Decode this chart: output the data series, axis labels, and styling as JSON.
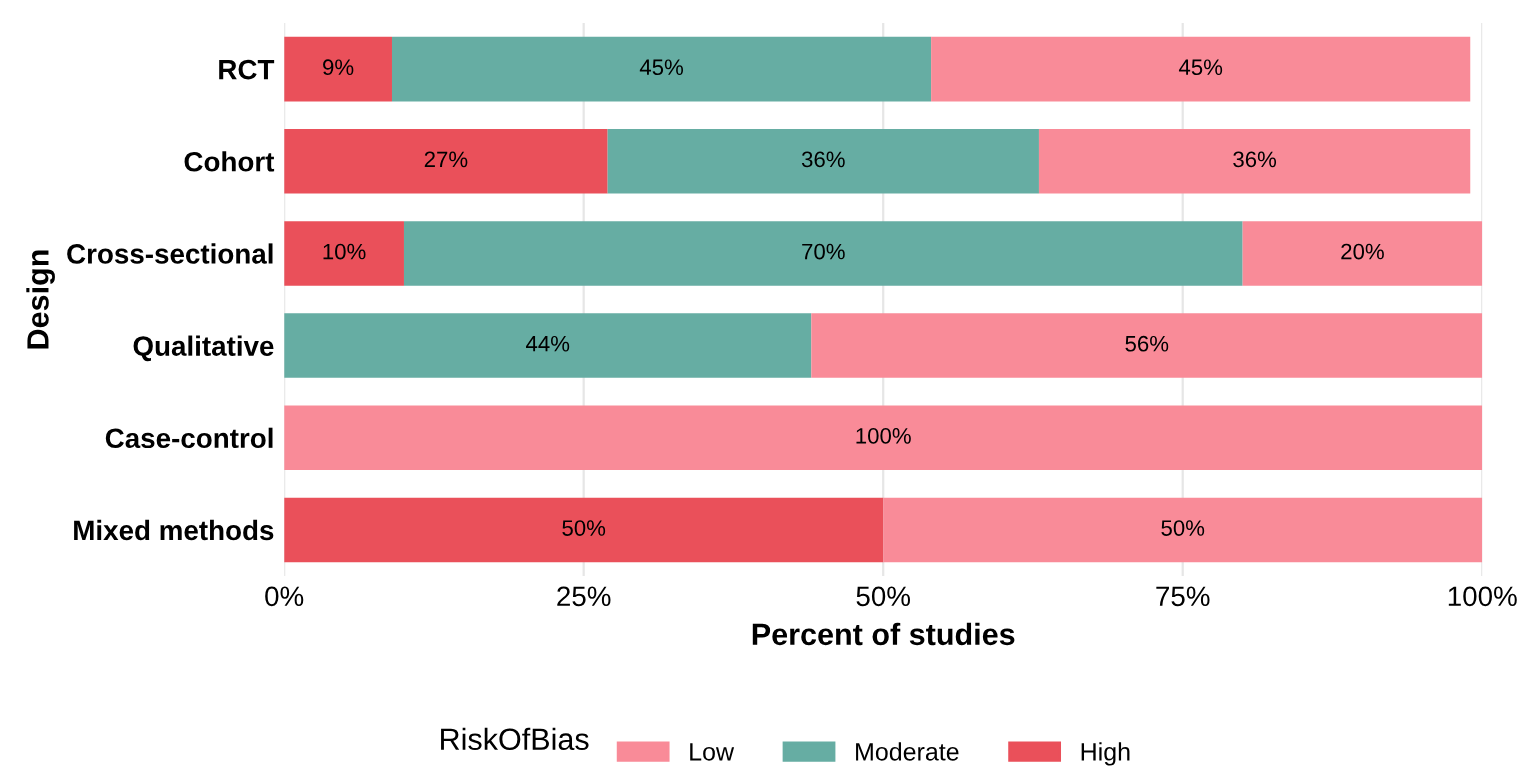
{
  "chart_data": {
    "type": "bar",
    "orientation": "horizontal",
    "stacked": true,
    "categories": [
      "RCT",
      "Cohort",
      "Cross-sectional",
      "Qualitative",
      "Case-control",
      "Mixed methods"
    ],
    "series": [
      {
        "name": "High",
        "color": "#ea505a",
        "values": [
          9,
          27,
          10,
          null,
          null,
          50
        ],
        "value_labels": [
          "9%",
          "27%",
          "10%",
          null,
          null,
          "50%"
        ]
      },
      {
        "name": "Moderate",
        "color": "#66ada3",
        "values": [
          45,
          36,
          70,
          44,
          null,
          null
        ],
        "value_labels": [
          "45%",
          "36%",
          "70%",
          "44%",
          null,
          null
        ]
      },
      {
        "name": "Low",
        "color": "#f98b98",
        "values": [
          45,
          36,
          20,
          56,
          100,
          50
        ],
        "value_labels": [
          "45%",
          "36%",
          "20%",
          "56%",
          "100%",
          "50%"
        ]
      }
    ],
    "xlim": [
      0,
      100
    ],
    "xticks": [
      {
        "value": 0,
        "label": "0%"
      },
      {
        "value": 25,
        "label": "25%"
      },
      {
        "value": 50,
        "label": "50%"
      },
      {
        "value": 75,
        "label": "75%"
      },
      {
        "value": 100,
        "label": "100%"
      }
    ],
    "xlabel": "Percent of studies",
    "ylabel": "Design",
    "legend_title": "RiskOfBias",
    "legend": "bottom",
    "grid": "x"
  }
}
